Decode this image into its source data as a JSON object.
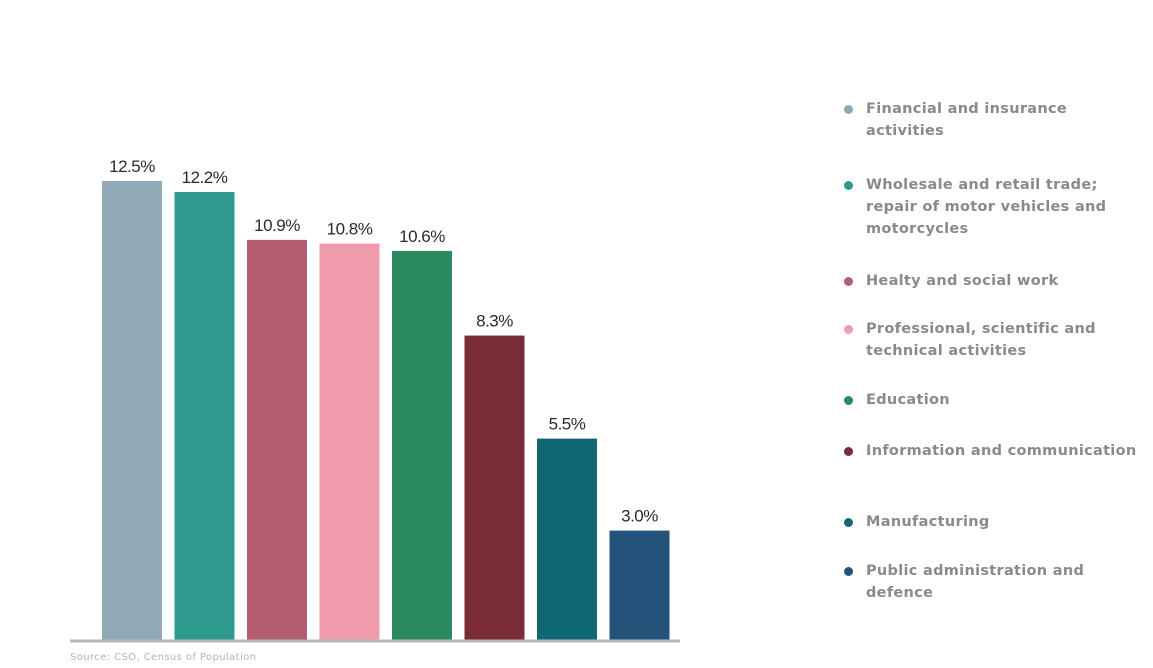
{
  "chart_data": {
    "type": "bar",
    "categories": [
      "Financial and insurance activities",
      "Wholesale and retail trade; repair of motor vehicles and motorcycles",
      "Health and social work",
      "Professional, scientific and technical activities",
      "Education",
      "Information and communication",
      "Manufacturing",
      "Public administration and defence"
    ],
    "values": [
      12.5,
      12.2,
      10.9,
      10.8,
      10.6,
      8.3,
      5.5,
      3.0
    ],
    "value_labels": [
      "12.5%",
      "12.2%",
      "10.9%",
      "10.8%",
      "10.6%",
      "8.3%",
      "5.5%",
      "3.0%"
    ],
    "colors": [
      "#8fa9b5",
      "#2e9a8e",
      "#b35d6e",
      "#f19aab",
      "#2b8a62",
      "#7a2b38",
      "#0f6873",
      "#23527a"
    ],
    "ylim": [
      0,
      12.5
    ],
    "grid": false,
    "legend_position": "right"
  },
  "legend": [
    {
      "label": "Financial and insurance activities",
      "color": "#8fa9b5"
    },
    {
      "label": "Wholesale and retail trade; repair of motor vehicles and motorcycles",
      "color": "#2e9a8e"
    },
    {
      "label": "Healty and social work",
      "color": "#b35d6e"
    },
    {
      "label": "Professional, scientific and technical activities",
      "color": "#f19aab"
    },
    {
      "label": "Education",
      "color": "#2b8a62"
    },
    {
      "label": "Information and communication",
      "color": "#7a2b38"
    },
    {
      "label": "Manufacturing",
      "color": "#0f6873"
    },
    {
      "label": "Public administration and defence",
      "color": "#23527a"
    }
  ],
  "source": "Source: CSO, Census of Population"
}
